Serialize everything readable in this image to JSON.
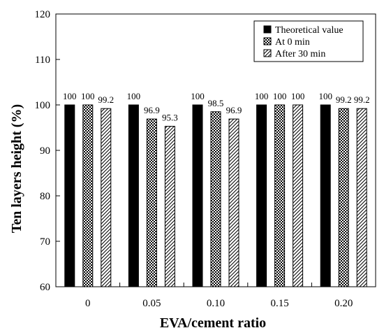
{
  "chart_data": {
    "type": "bar",
    "title": "",
    "xlabel": "EVA/cement ratio",
    "ylabel": "Ten layers height (%)",
    "ylim": [
      60,
      120
    ],
    "yticks": [
      "60",
      "70",
      "80",
      "90",
      "100",
      "110",
      "120"
    ],
    "categories": [
      "0",
      "0.05",
      "0.10",
      "0.15",
      "0.20"
    ],
    "series": [
      {
        "name": "Theoretical value",
        "values": [
          100,
          100,
          100,
          100,
          100
        ],
        "labels": [
          "100",
          "100",
          "100",
          "100",
          "100"
        ],
        "pattern": "solid-black"
      },
      {
        "name": "At 0 min",
        "values": [
          100,
          96.9,
          98.5,
          100,
          99.2
        ],
        "labels": [
          "100",
          "96.9",
          "98.5",
          "100",
          "99.2"
        ],
        "pattern": "checker"
      },
      {
        "name": "After 30 min",
        "values": [
          99.2,
          95.3,
          96.9,
          100,
          99.2
        ],
        "labels": [
          "99.2",
          "95.3",
          "96.9",
          "100",
          "99.2"
        ],
        "pattern": "diagonal-hatch"
      }
    ],
    "legend_position": "top-right",
    "grid": false
  }
}
